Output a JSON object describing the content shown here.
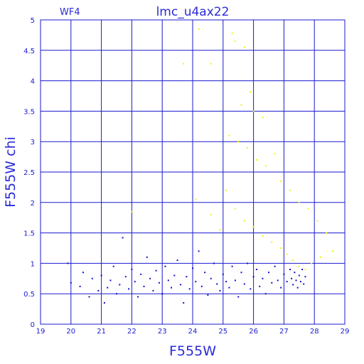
{
  "chart_data": {
    "type": "scatter",
    "title": "lmc_u4ax22",
    "chip_label": "WF4",
    "xlabel": "F555W",
    "ylabel": "F555W  chi",
    "xlim": [
      19,
      29
    ],
    "ylim": [
      0,
      5
    ],
    "x_ticks": [
      "19",
      "20",
      "21",
      "22",
      "23",
      "24",
      "25",
      "26",
      "27",
      "28",
      "29"
    ],
    "y_ticks": [
      "0",
      "0.5",
      "1",
      "1.5",
      "2",
      "2.5",
      "3",
      "3.5",
      "4",
      "4.5",
      "5"
    ],
    "grid": true,
    "colors": {
      "frame": "#1a1ad0",
      "blue_points": "#1010d0",
      "yellow_points": "#f2f200"
    },
    "series": [
      {
        "color": "blue",
        "points": [
          [
            19.9,
            1.0
          ],
          [
            20.0,
            0.68
          ],
          [
            20.3,
            0.62
          ],
          [
            20.4,
            0.85
          ],
          [
            20.6,
            0.45
          ],
          [
            20.7,
            0.75
          ],
          [
            20.9,
            0.55
          ],
          [
            21.0,
            0.8
          ],
          [
            21.1,
            0.35
          ],
          [
            21.2,
            0.6
          ],
          [
            21.3,
            0.72
          ],
          [
            21.4,
            0.95
          ],
          [
            21.5,
            0.5
          ],
          [
            21.6,
            0.65
          ],
          [
            21.7,
            1.42
          ],
          [
            21.8,
            0.78
          ],
          [
            21.9,
            0.58
          ],
          [
            22.0,
            0.9
          ],
          [
            22.1,
            0.7
          ],
          [
            22.2,
            0.45
          ],
          [
            22.3,
            0.82
          ],
          [
            22.4,
            0.62
          ],
          [
            22.5,
            1.1
          ],
          [
            22.6,
            0.75
          ],
          [
            22.7,
            0.55
          ],
          [
            22.8,
            0.88
          ],
          [
            22.9,
            0.68
          ],
          [
            23.0,
            0.5
          ],
          [
            23.1,
            0.95
          ],
          [
            23.2,
            0.72
          ],
          [
            23.3,
            0.6
          ],
          [
            23.4,
            0.8
          ],
          [
            23.5,
            1.05
          ],
          [
            23.6,
            0.65
          ],
          [
            23.7,
            0.35
          ],
          [
            23.8,
            0.78
          ],
          [
            23.9,
            0.58
          ],
          [
            24.0,
            0.92
          ],
          [
            24.1,
            0.7
          ],
          [
            24.2,
            1.2
          ],
          [
            24.3,
            0.62
          ],
          [
            24.4,
            0.85
          ],
          [
            24.5,
            0.48
          ],
          [
            24.6,
            0.75
          ],
          [
            24.7,
            1.0
          ],
          [
            24.8,
            0.66
          ],
          [
            24.9,
            0.55
          ],
          [
            25.0,
            0.82
          ],
          [
            25.1,
            0.7
          ],
          [
            25.2,
            0.6
          ],
          [
            25.3,
            0.95
          ],
          [
            25.4,
            0.72
          ],
          [
            25.5,
            0.45
          ],
          [
            25.6,
            0.85
          ],
          [
            25.7,
            0.66
          ],
          [
            25.8,
            1.0
          ],
          [
            25.9,
            0.58
          ],
          [
            26.0,
            0.78
          ],
          [
            26.1,
            0.9
          ],
          [
            26.2,
            0.62
          ],
          [
            26.3,
            0.75
          ],
          [
            26.4,
            0.5
          ],
          [
            26.5,
            0.85
          ],
          [
            26.6,
            0.68
          ],
          [
            26.7,
            0.95
          ],
          [
            26.8,
            0.72
          ],
          [
            26.9,
            0.6
          ],
          [
            27.0,
            0.82
          ],
          [
            27.1,
            0.7
          ],
          [
            27.2,
            0.9
          ],
          [
            27.25,
            0.75
          ],
          [
            27.3,
            0.65
          ],
          [
            27.35,
            0.85
          ],
          [
            27.4,
            0.72
          ],
          [
            27.45,
            0.6
          ],
          [
            27.5,
            0.8
          ],
          [
            27.55,
            0.7
          ],
          [
            27.6,
            0.9
          ],
          [
            27.65,
            0.66
          ],
          [
            27.7,
            0.78
          ]
        ]
      },
      {
        "color": "yellow",
        "points": [
          [
            23.7,
            4.28
          ],
          [
            24.2,
            4.85
          ],
          [
            24.6,
            4.28
          ],
          [
            25.3,
            4.78
          ],
          [
            25.4,
            4.65
          ],
          [
            25.7,
            4.55
          ],
          [
            25.6,
            3.6
          ],
          [
            25.9,
            3.82
          ],
          [
            26.0,
            3.5
          ],
          [
            26.3,
            3.4
          ],
          [
            25.2,
            3.1
          ],
          [
            25.5,
            3.0
          ],
          [
            25.8,
            2.9
          ],
          [
            26.1,
            2.7
          ],
          [
            26.4,
            2.6
          ],
          [
            26.7,
            2.8
          ],
          [
            26.9,
            2.35
          ],
          [
            27.2,
            2.2
          ],
          [
            27.5,
            2.0
          ],
          [
            27.8,
            1.9
          ],
          [
            28.1,
            1.7
          ],
          [
            28.4,
            1.5
          ],
          [
            28.6,
            1.2
          ],
          [
            25.1,
            2.2
          ],
          [
            25.4,
            1.9
          ],
          [
            25.7,
            1.7
          ],
          [
            26.0,
            1.6
          ],
          [
            26.3,
            1.45
          ],
          [
            26.6,
            1.35
          ],
          [
            26.9,
            1.25
          ],
          [
            27.1,
            1.15
          ],
          [
            27.3,
            1.05
          ],
          [
            27.5,
            0.95
          ],
          [
            27.7,
            0.9
          ],
          [
            27.9,
            1.0
          ],
          [
            28.2,
            1.1
          ],
          [
            24.1,
            2.05
          ],
          [
            24.6,
            1.8
          ],
          [
            24.9,
            1.55
          ],
          [
            22.0,
            1.85
          ]
        ]
      }
    ]
  }
}
